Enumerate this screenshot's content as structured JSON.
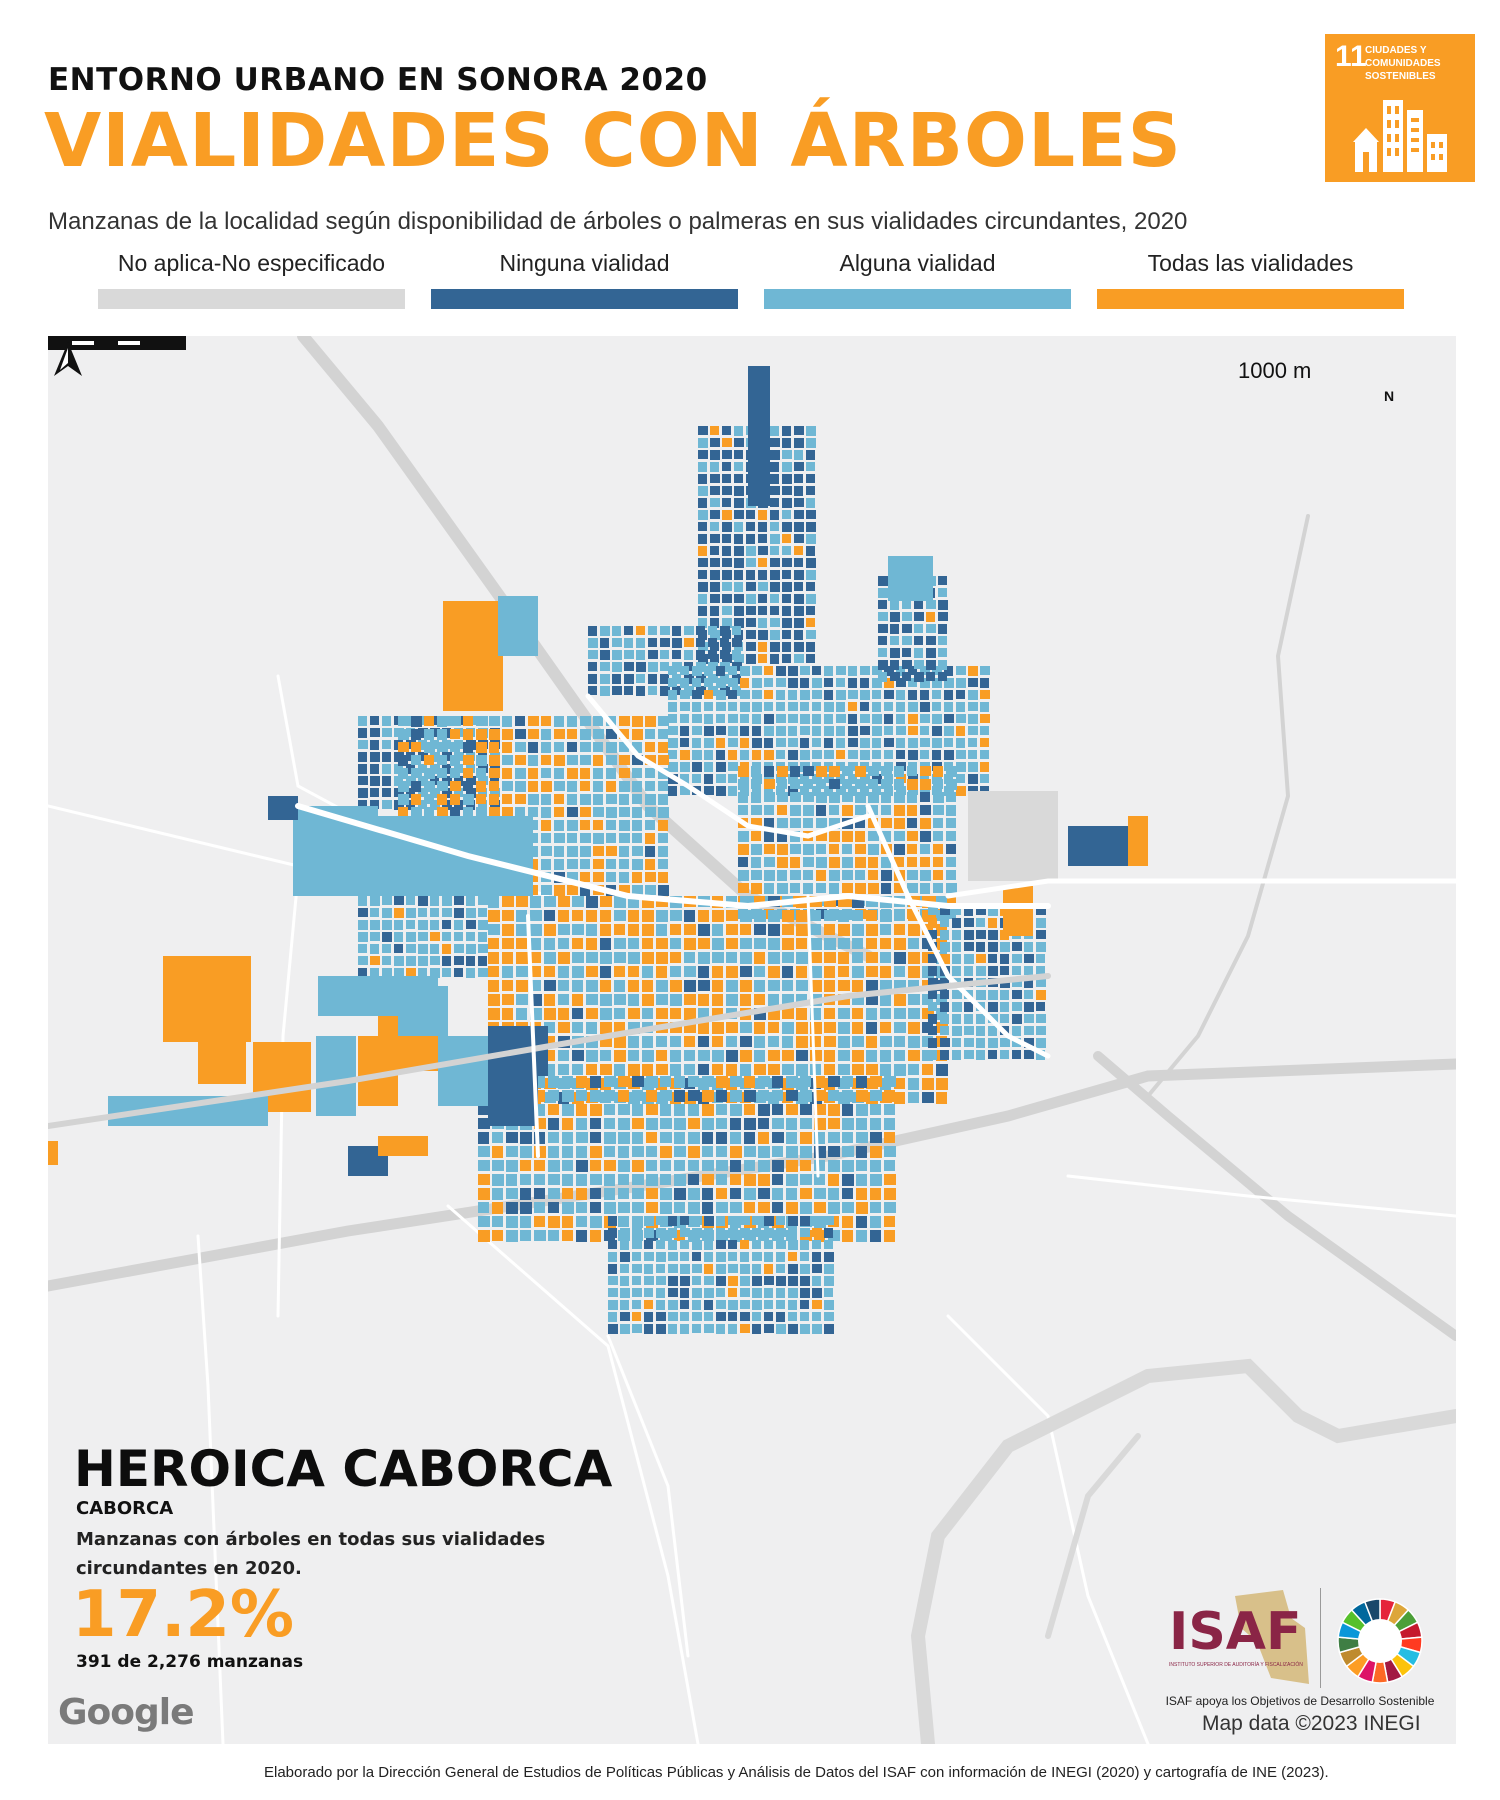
{
  "header": {
    "kicker": "ENTORNO URBANO EN SONORA 2020",
    "title": "VIALIDADES CON ÁRBOLES",
    "subtitle": "Manzanas de la localidad según disponibilidad de árboles o palmeras en sus vialidades circundantes, 2020"
  },
  "sdg_badge": {
    "number": "11",
    "label": "CIUDADES Y COMUNIDADES SOSTENIBLES",
    "color": "#f99d24"
  },
  "legend": [
    {
      "label": "No aplica-No especificado",
      "color": "#d9d9d9"
    },
    {
      "label": "Ninguna vialidad",
      "color": "#336594"
    },
    {
      "label": "Alguna vialidad",
      "color": "#6fb7d4"
    },
    {
      "label": "Todas las vialidades",
      "color": "#f99d24"
    }
  ],
  "map": {
    "scale_label": "1000 m",
    "north_label": "N",
    "credit": "Map data ©2023 INEGI",
    "provider": "Google",
    "background_color": "#efeff0",
    "road_color": "#ffffff",
    "highway_color": "#d3d3d3"
  },
  "location": {
    "name": "HEROICA CABORCA",
    "municipality": "CABORCA"
  },
  "stat": {
    "description": "Manzanas con árboles en todas sus vialidades circundantes en 2020.",
    "value": "17.2%",
    "detail": "391 de 2,276 manzanas",
    "share": 0.172,
    "count": 391,
    "total": 2276
  },
  "isaf": {
    "logo_text": "ISAF",
    "logo_subtext": "INSTITUTO SUPERIOR DE AUDITORÍA Y FISCALIZACIÓN",
    "caption": "ISAF apoya los Objetivos de Desarrollo Sostenible"
  },
  "footer": "Elaborado por la Dirección General de Estudios de Políticas Públicas y Análisis de Datos del ISAF con información de INEGI (2020) y cartografía de INE (2023)."
}
